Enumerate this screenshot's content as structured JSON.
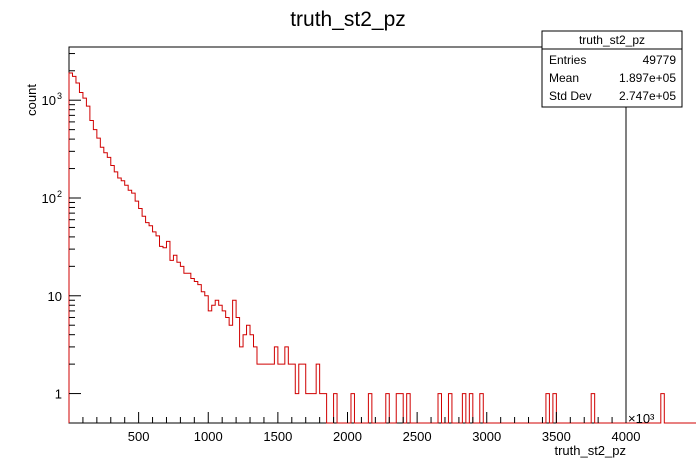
{
  "chart_data": {
    "type": "bar",
    "title": "truth_st2_pz",
    "xlabel": "truth_st2_pz",
    "ylabel": "count",
    "x_scale_label": "×10³",
    "xlim": [
      0,
      4000
    ],
    "ylim": [
      0.5,
      3500
    ],
    "yscale": "log",
    "x_ticks": [
      500,
      1000,
      1500,
      2000,
      2500,
      3000,
      3500,
      4000
    ],
    "y_ticks": [
      {
        "value": 1,
        "label": "1"
      },
      {
        "value": 10,
        "label": "10"
      },
      {
        "value": 100,
        "label": "10",
        "exp": "2"
      },
      {
        "value": 1000,
        "label": "10",
        "exp": "3"
      }
    ],
    "bin_width": 25,
    "x_start": 0,
    "color": "#d00000",
    "grid": false,
    "legend": "top-right",
    "values": [
      1900,
      1750,
      1500,
      1200,
      1050,
      870,
      620,
      500,
      410,
      330,
      290,
      260,
      215,
      185,
      160,
      150,
      135,
      120,
      112,
      93,
      78,
      65,
      56,
      52,
      45,
      41,
      32,
      31,
      36,
      23,
      26,
      22,
      20,
      17,
      17,
      15,
      14,
      13,
      11,
      10,
      7,
      8,
      9,
      8,
      7,
      6,
      5,
      9,
      6,
      3,
      4,
      5,
      4,
      3,
      2,
      2,
      2,
      2,
      2,
      3,
      2,
      2,
      3,
      2,
      2,
      1,
      2,
      2,
      1,
      1,
      1,
      2,
      1,
      1,
      0,
      0,
      1,
      0,
      0,
      0,
      0,
      1,
      0,
      0,
      0,
      0,
      1,
      0,
      0,
      0,
      0,
      1,
      0,
      0,
      1,
      1,
      0,
      1,
      0,
      0,
      0,
      0,
      0,
      0,
      0,
      0,
      1,
      0,
      0,
      1,
      0,
      0,
      0,
      1,
      0,
      1,
      0,
      0,
      1,
      0,
      0,
      0,
      0,
      0,
      0,
      0,
      0,
      0,
      0,
      0,
      0,
      0,
      0,
      0,
      0,
      0,
      0,
      1,
      0,
      1,
      0,
      0,
      0,
      0,
      0,
      0,
      0,
      0,
      0,
      0,
      1,
      0,
      0,
      0,
      0,
      0,
      0,
      0,
      0,
      0,
      0,
      0,
      0,
      0,
      0,
      0,
      0,
      0,
      0,
      0,
      1,
      0,
      0,
      0,
      0,
      0,
      0,
      0,
      0,
      0,
      0,
      0,
      0,
      0,
      0,
      0,
      0,
      0,
      0,
      0,
      0,
      0,
      0,
      0,
      0,
      1,
      0,
      0,
      0,
      0,
      0,
      0,
      0,
      0,
      0,
      0,
      0,
      0,
      0,
      0,
      0,
      0,
      0,
      0,
      0,
      0,
      0,
      0,
      0,
      0,
      0,
      0,
      0,
      0,
      0,
      0,
      0,
      0,
      0,
      0,
      0,
      0,
      0,
      0,
      0,
      1,
      0,
      0,
      0,
      0,
      0,
      0,
      1
    ]
  },
  "stats_box": {
    "title": "truth_st2_pz",
    "rows": [
      {
        "label": "Entries",
        "value": "49779"
      },
      {
        "label": "Mean",
        "value": "1.897e+05"
      },
      {
        "label": "Std Dev",
        "value": "2.747e+05"
      }
    ]
  }
}
